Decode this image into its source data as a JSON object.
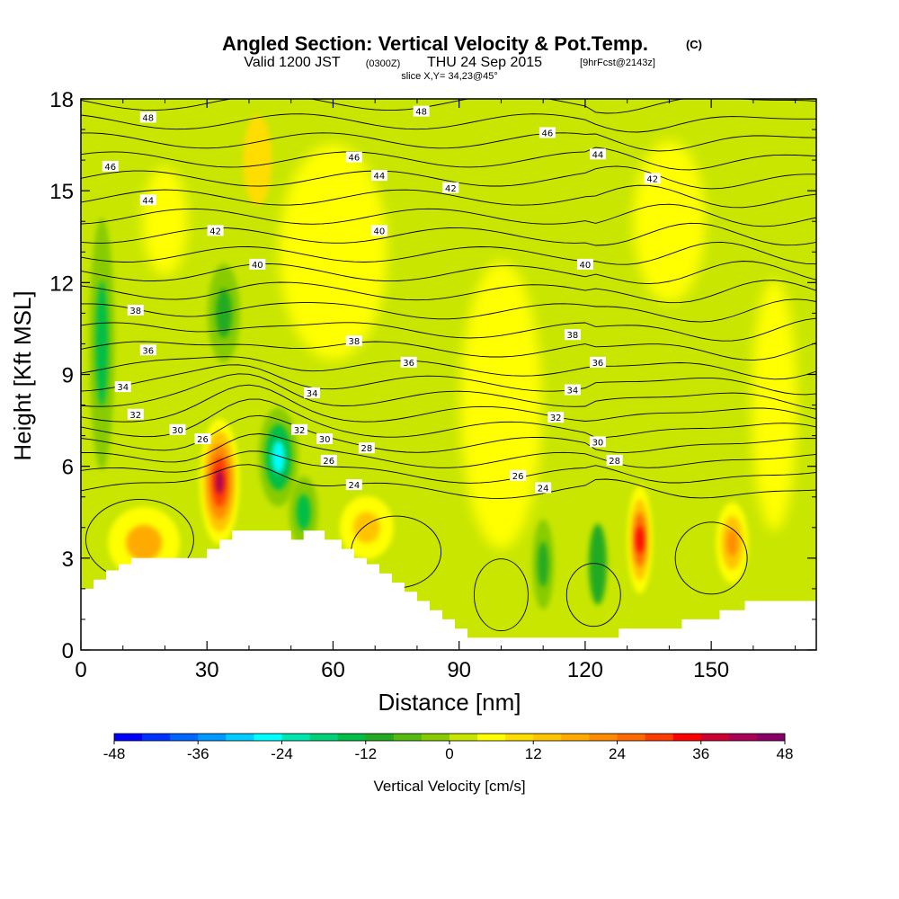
{
  "chart_data": {
    "type": "heatmap",
    "title": "Angled Section: Vertical Velocity & Pot.Temp.",
    "title_unit": "(C)",
    "subtitle_valid": "Valid 1200 JST",
    "subtitle_z": "(0300Z)",
    "subtitle_date": "THU 24 Sep 2015",
    "subtitle_fcst": "[9hrFcst@2143z]",
    "slice_label": "slice X,Y= 34,23@45°",
    "xlabel": "Distance [nm]",
    "ylabel": "Height [Kft MSL]",
    "xlim": [
      0,
      175
    ],
    "ylim": [
      0,
      18
    ],
    "x_ticks": [
      "0",
      "30",
      "60",
      "90",
      "120",
      "150"
    ],
    "x_tick_values": [
      0,
      30,
      60,
      90,
      120,
      150
    ],
    "y_ticks": [
      "0",
      "3",
      "6",
      "9",
      "12",
      "15",
      "18"
    ],
    "y_tick_values": [
      0,
      3,
      6,
      9,
      12,
      15,
      18
    ],
    "colorbar": {
      "label": "Vertical Velocity [cm/s]",
      "ticks": [
        "-48",
        "-36",
        "-24",
        "-12",
        "0",
        "12",
        "24",
        "36",
        "48"
      ],
      "tick_values": [
        -48,
        -36,
        -24,
        -12,
        0,
        12,
        24,
        36,
        48
      ],
      "bounds": [
        -48,
        48
      ],
      "step": 4,
      "colors": [
        "#0000ff",
        "#0033ff",
        "#0066ff",
        "#0099ff",
        "#00ccff",
        "#00ffff",
        "#00e6b0",
        "#00d27a",
        "#00be46",
        "#22aa22",
        "#55bb11",
        "#88cc00",
        "#c8e600",
        "#ffff00",
        "#ffdd00",
        "#ffc400",
        "#ffaa00",
        "#ff8c00",
        "#ff6a00",
        "#ff3c00",
        "#ff0000",
        "#cc0033",
        "#aa0055",
        "#880066",
        "#660088"
      ]
    },
    "velocity_features": [
      {
        "x": 5,
        "y": 10,
        "w": -16,
        "note": "downdraft column near left edge"
      },
      {
        "x": 33,
        "y": 5.5,
        "w": 40
      },
      {
        "x": 47,
        "y": 6.3,
        "w": -26
      },
      {
        "x": 53,
        "y": 4.5,
        "w": -14
      },
      {
        "x": 34,
        "y": 11,
        "w": -12
      },
      {
        "x": 42,
        "y": 16,
        "w": 8
      },
      {
        "x": 133,
        "y": 3.6,
        "w": 34
      },
      {
        "x": 110,
        "y": 2.8,
        "w": -12
      },
      {
        "x": 123,
        "y": 2.8,
        "w": -10
      },
      {
        "x": 155,
        "y": 3.5,
        "w": 20
      },
      {
        "x": 15,
        "y": 3.5,
        "w": 18
      },
      {
        "x": 68,
        "y": 4,
        "w": 14
      }
    ],
    "contours": {
      "variable": "Potential temperature",
      "labels": [
        {
          "x": 16,
          "y": 17.4,
          "text": "48"
        },
        {
          "x": 81,
          "y": 17.6,
          "text": "48"
        },
        {
          "x": 7,
          "y": 15.8,
          "text": "46"
        },
        {
          "x": 65,
          "y": 16.1,
          "text": "46"
        },
        {
          "x": 111,
          "y": 16.9,
          "text": "46"
        },
        {
          "x": 16,
          "y": 14.7,
          "text": "44"
        },
        {
          "x": 71,
          "y": 15.5,
          "text": "44"
        },
        {
          "x": 123,
          "y": 16.2,
          "text": "44"
        },
        {
          "x": 32,
          "y": 13.7,
          "text": "42"
        },
        {
          "x": 88,
          "y": 15.1,
          "text": "42"
        },
        {
          "x": 136,
          "y": 15.4,
          "text": "42"
        },
        {
          "x": 42,
          "y": 12.6,
          "text": "40"
        },
        {
          "x": 71,
          "y": 13.7,
          "text": "40"
        },
        {
          "x": 120,
          "y": 12.6,
          "text": "40"
        },
        {
          "x": 13,
          "y": 11.1,
          "text": "38"
        },
        {
          "x": 65,
          "y": 10.1,
          "text": "38"
        },
        {
          "x": 117,
          "y": 10.3,
          "text": "38"
        },
        {
          "x": 16,
          "y": 9.8,
          "text": "36"
        },
        {
          "x": 78,
          "y": 9.4,
          "text": "36"
        },
        {
          "x": 123,
          "y": 9.4,
          "text": "36"
        },
        {
          "x": 10,
          "y": 8.6,
          "text": "34"
        },
        {
          "x": 55,
          "y": 8.4,
          "text": "34"
        },
        {
          "x": 117,
          "y": 8.5,
          "text": "34"
        },
        {
          "x": 13,
          "y": 7.7,
          "text": "32"
        },
        {
          "x": 52,
          "y": 7.2,
          "text": "32"
        },
        {
          "x": 113,
          "y": 7.6,
          "text": "32"
        },
        {
          "x": 23,
          "y": 7.2,
          "text": "30"
        },
        {
          "x": 58,
          "y": 6.9,
          "text": "30"
        },
        {
          "x": 123,
          "y": 6.8,
          "text": "30"
        },
        {
          "x": 29,
          "y": 6.9,
          "text": "26"
        },
        {
          "x": 59,
          "y": 6.2,
          "text": "26"
        },
        {
          "x": 104,
          "y": 5.7,
          "text": "26"
        },
        {
          "x": 68,
          "y": 6.6,
          "text": "28"
        },
        {
          "x": 127,
          "y": 6.2,
          "text": "28"
        },
        {
          "x": 65,
          "y": 5.4,
          "text": "24"
        },
        {
          "x": 110,
          "y": 5.3,
          "text": "24"
        }
      ]
    },
    "terrain_profile": [
      [
        0,
        2
      ],
      [
        3,
        2
      ],
      [
        3,
        2.3
      ],
      [
        6,
        2.3
      ],
      [
        6,
        2.6
      ],
      [
        9,
        2.6
      ],
      [
        9,
        2.8
      ],
      [
        12,
        2.8
      ],
      [
        12,
        3
      ],
      [
        30,
        3
      ],
      [
        30,
        3.3
      ],
      [
        33,
        3.3
      ],
      [
        33,
        3.6
      ],
      [
        36,
        3.6
      ],
      [
        36,
        3.9
      ],
      [
        50,
        3.9
      ],
      [
        50,
        3.6
      ],
      [
        53,
        3.6
      ],
      [
        53,
        3.9
      ],
      [
        58,
        3.9
      ],
      [
        58,
        3.6
      ],
      [
        62,
        3.6
      ],
      [
        62,
        3.3
      ],
      [
        65,
        3.3
      ],
      [
        65,
        3.0
      ],
      [
        68,
        3.0
      ],
      [
        68,
        2.8
      ],
      [
        71,
        2.8
      ],
      [
        71,
        2.5
      ],
      [
        74,
        2.5
      ],
      [
        74,
        2.2
      ],
      [
        77,
        2.2
      ],
      [
        77,
        1.9
      ],
      [
        80,
        1.9
      ],
      [
        80,
        1.6
      ],
      [
        83,
        1.6
      ],
      [
        83,
        1.3
      ],
      [
        86,
        1.3
      ],
      [
        86,
        1.0
      ],
      [
        89,
        1.0
      ],
      [
        89,
        0.7
      ],
      [
        92,
        0.7
      ],
      [
        92,
        0.4
      ],
      [
        128,
        0.4
      ],
      [
        128,
        0.7
      ],
      [
        143,
        0.7
      ],
      [
        143,
        1.0
      ],
      [
        152,
        1.0
      ],
      [
        152,
        1.3
      ],
      [
        158,
        1.3
      ],
      [
        158,
        1.6
      ],
      [
        175,
        1.6
      ]
    ]
  }
}
